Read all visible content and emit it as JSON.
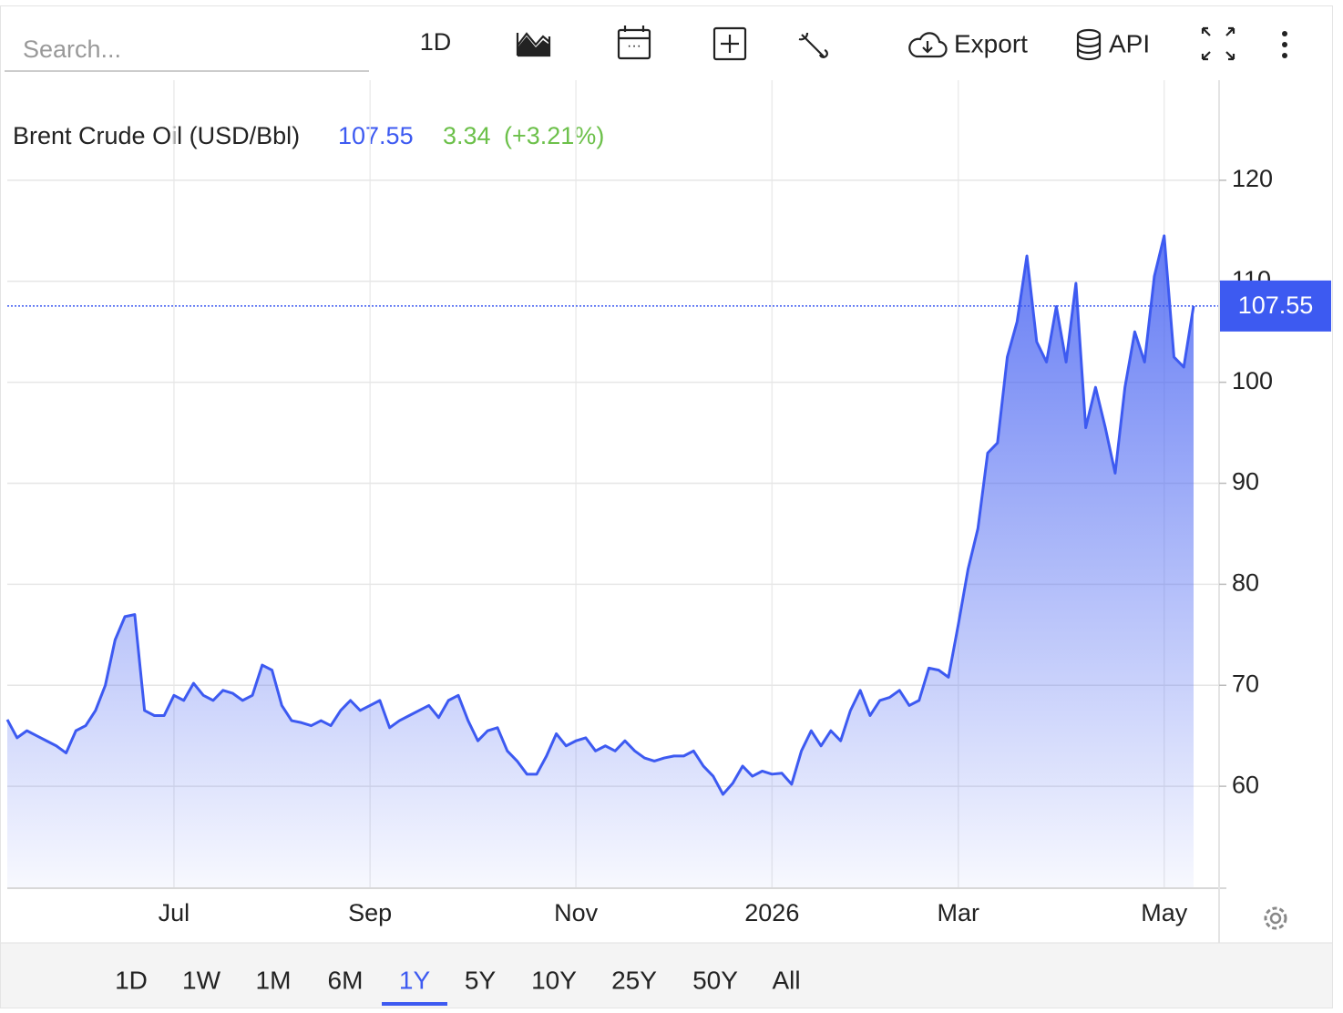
{
  "toolbar": {
    "search_placeholder": "Search...",
    "interval": "1D",
    "export": "Export",
    "api": "API"
  },
  "ranges": [
    "1D",
    "1W",
    "1M",
    "6M",
    "1Y",
    "5Y",
    "10Y",
    "25Y",
    "50Y",
    "All"
  ],
  "active_range": "1Y",
  "chart_data": {
    "type": "line",
    "title": "Brent Crude Oil (USD/Bbl)",
    "price": 107.55,
    "change": 3.34,
    "change_label": "(+3.21%)",
    "categories": [
      null,
      null,
      null,
      null,
      null,
      null,
      null,
      null,
      null,
      null,
      null,
      null,
      null,
      null,
      null,
      null,
      null,
      "Jul",
      null,
      null,
      null,
      null,
      null,
      null,
      null,
      null,
      null,
      null,
      null,
      null,
      null,
      null,
      null,
      null,
      null,
      null,
      null,
      "Sep",
      null,
      null,
      null,
      null,
      null,
      null,
      null,
      null,
      null,
      null,
      null,
      null,
      null,
      null,
      null,
      null,
      null,
      null,
      null,
      null,
      "Nov",
      null,
      null,
      null,
      null,
      null,
      null,
      null,
      null,
      null,
      null,
      null,
      null,
      null,
      null,
      null,
      null,
      null,
      null,
      null,
      "2026",
      null,
      null,
      null,
      null,
      null,
      null,
      null,
      null,
      null,
      null,
      null,
      null,
      null,
      null,
      null,
      null,
      null,
      null,
      "Mar",
      null,
      null,
      null,
      null,
      null,
      null,
      null,
      null,
      null,
      null,
      null,
      null,
      null,
      null,
      null,
      null,
      null,
      null,
      null,
      null,
      "May",
      null,
      null,
      null
    ],
    "series": [
      {
        "name": "Brent Crude Oil",
        "color": "#3d5af1",
        "values": [
          66.6,
          64.8,
          65.5,
          65.0,
          64.5,
          64.0,
          63.3,
          65.5,
          66.0,
          67.5,
          70.0,
          74.5,
          76.8,
          77.0,
          67.5,
          67.0,
          67.0,
          69.0,
          68.5,
          70.2,
          69.0,
          68.5,
          69.5,
          69.2,
          68.5,
          69.0,
          72.0,
          71.5,
          68.0,
          66.5,
          66.3,
          66.0,
          66.5,
          66.0,
          67.5,
          68.5,
          67.5,
          68.0,
          68.5,
          65.8,
          66.5,
          67.0,
          67.5,
          68.0,
          66.8,
          68.5,
          69.0,
          66.5,
          64.5,
          65.5,
          65.8,
          63.5,
          62.5,
          61.2,
          61.2,
          63.0,
          65.2,
          64.0,
          64.5,
          64.8,
          63.5,
          64.0,
          63.5,
          64.5,
          63.5,
          62.8,
          62.5,
          62.8,
          63.0,
          63.0,
          63.5,
          62.0,
          61.0,
          59.2,
          60.3,
          62.0,
          61.0,
          61.5,
          61.2,
          61.3,
          60.2,
          63.5,
          65.5,
          64.0,
          65.5,
          64.5,
          67.5,
          69.5,
          67.0,
          68.5,
          68.8,
          69.5,
          68.0,
          68.5,
          71.7,
          71.5,
          70.8,
          76.0,
          81.5,
          85.5,
          93.0,
          94.0,
          102.5,
          106.0,
          112.5,
          104.0,
          102.0,
          107.5,
          102.0,
          109.8,
          95.5,
          99.5,
          95.5,
          91.0,
          99.5,
          105.0,
          102.0,
          110.5,
          114.5,
          102.5,
          101.5,
          107.55
        ]
      }
    ],
    "ylim": [
      50,
      130
    ],
    "yticks": [
      60,
      70,
      80,
      90,
      100,
      110,
      120
    ],
    "grid": true
  }
}
